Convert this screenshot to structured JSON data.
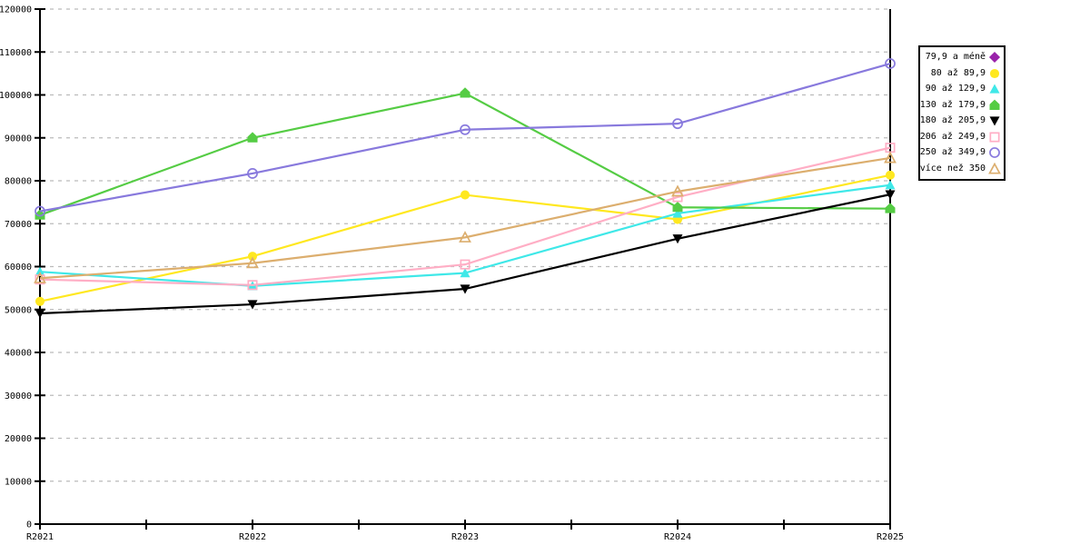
{
  "chart_data": {
    "type": "line",
    "title": "",
    "xlabel": "",
    "ylabel": "",
    "x_categories": [
      "R2021",
      "R2022",
      "R2023",
      "R2024",
      "R2025"
    ],
    "x_minor_tick_between_years": true,
    "ylim": [
      0,
      120000
    ],
    "ytick_step": 10000,
    "ytick_labels": [
      "0",
      "10000",
      "20000",
      "30000",
      "40000",
      "50000",
      "60000",
      "70000",
      "80000",
      "90000",
      "100000",
      "110000",
      "120000"
    ],
    "grid": {
      "horizontal": true,
      "vertical": false,
      "style": "dashed",
      "color": "#bbbbbb"
    },
    "axis_color": "#000000",
    "background_color": "#ffffff",
    "legend_position": "right-outside",
    "series": [
      {
        "name": "79,9 a méně",
        "marker": "diamond",
        "marker_fill": "filled",
        "color": "#9922aa",
        "values": []
      },
      {
        "name": "80 až 89,9",
        "marker": "circle",
        "marker_fill": "filled",
        "color": "#ffe820",
        "values": [
          51900,
          62400,
          76700,
          71000,
          81300
        ]
      },
      {
        "name": "90 až 129,9",
        "marker": "triangle-up",
        "marker_fill": "filled",
        "color": "#3fe8e8",
        "values": [
          58800,
          55500,
          58500,
          72400,
          79000
        ]
      },
      {
        "name": "130 až 179,9",
        "marker": "pentagon",
        "marker_fill": "filled",
        "color": "#55cc44",
        "values": [
          72000,
          90000,
          100400,
          73800,
          73500
        ]
      },
      {
        "name": "180 až 205,9",
        "marker": "triangle-down",
        "marker_fill": "filled",
        "color": "#000000",
        "values": [
          49100,
          51200,
          54800,
          66500,
          76800
        ]
      },
      {
        "name": "206 až 249,9",
        "marker": "square",
        "marker_fill": "open",
        "color": "#ffaec5",
        "values": [
          57000,
          55700,
          60500,
          76200,
          87700
        ]
      },
      {
        "name": "250 až 349,9",
        "marker": "circle",
        "marker_fill": "open",
        "color": "#8879dd",
        "values": [
          72900,
          81700,
          91900,
          93300,
          107300
        ]
      },
      {
        "name": "více než 350",
        "marker": "triangle-up",
        "marker_fill": "open",
        "color": "#dcae6e",
        "values": [
          57300,
          60800,
          66800,
          77500,
          85300
        ]
      }
    ]
  }
}
